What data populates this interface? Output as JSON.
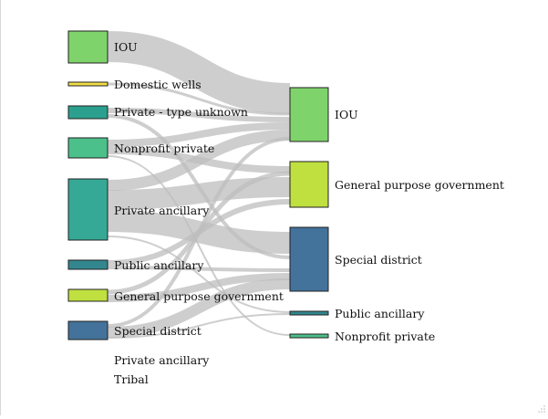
{
  "diagram": {
    "type": "sankey",
    "link_color": "#bdbdbd",
    "left_nodes": [
      {
        "id": "L0",
        "label": "IOU",
        "color": "#7fd36b"
      },
      {
        "id": "L1",
        "label": "Domestic wells",
        "color": "#f0df47"
      },
      {
        "id": "L2",
        "label": "Private - type unknown",
        "color": "#2ca08e"
      },
      {
        "id": "L3",
        "label": "Nonprofit private",
        "color": "#4cc08a"
      },
      {
        "id": "L4",
        "label": "Private ancillary",
        "color": "#35a896"
      },
      {
        "id": "L5",
        "label": "Public ancillary",
        "color": "#32878f"
      },
      {
        "id": "L6",
        "label": "General purpose government",
        "color": "#bfe03f"
      },
      {
        "id": "L7",
        "label": "Special district",
        "color": "#43729a"
      }
    ],
    "right_nodes": [
      {
        "id": "R0",
        "label": "IOU",
        "color": "#7fd36b"
      },
      {
        "id": "R1",
        "label": "General purpose government",
        "color": "#bfe03f"
      },
      {
        "id": "R2",
        "label": "Special district",
        "color": "#43729a"
      },
      {
        "id": "R3",
        "label": "Public ancillary",
        "color": "#32878f"
      },
      {
        "id": "R4",
        "label": "Nonprofit private",
        "color": "#4cc08a"
      }
    ],
    "extra_labels": [
      {
        "label": "Private ancillary"
      },
      {
        "label": "Tribal"
      }
    ]
  }
}
